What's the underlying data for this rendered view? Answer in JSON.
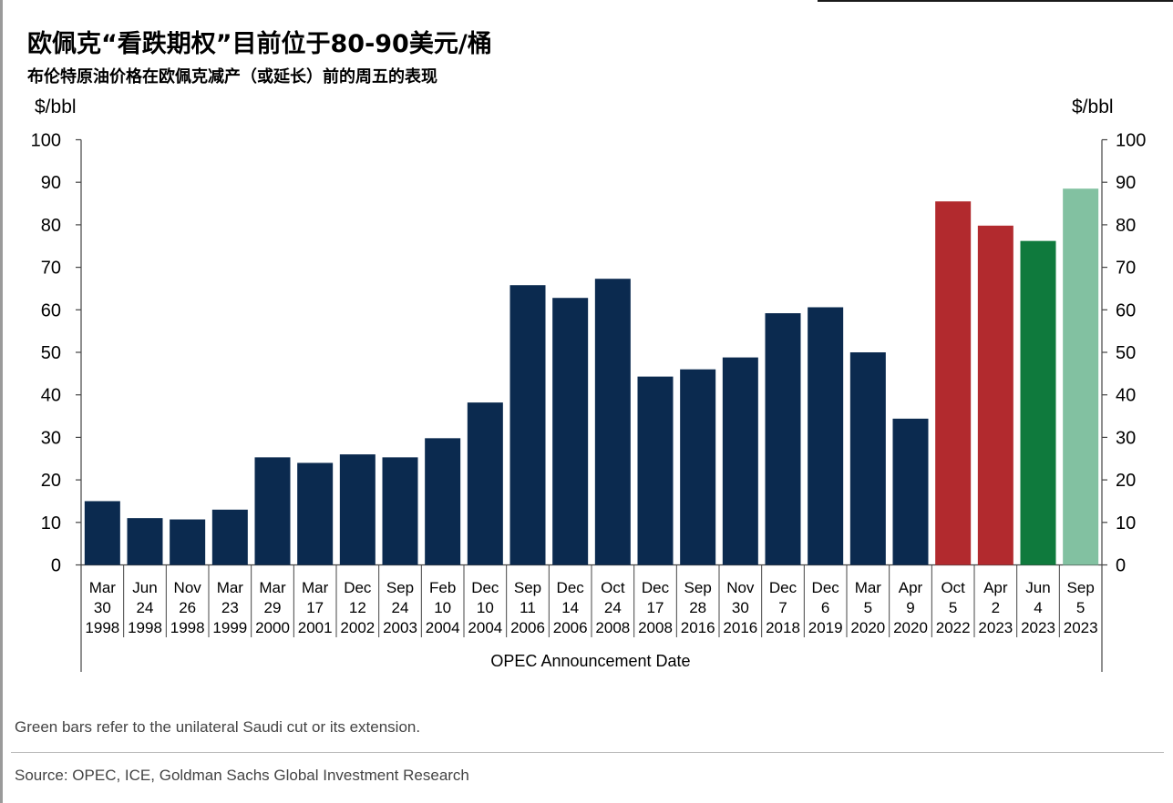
{
  "title": "欧佩克“看跌期权”目前位于80-90美元/桶",
  "subtitle": "布伦特原油价格在欧佩克减产（或延长）前的周五的表现",
  "unit_left": "$/bbl",
  "unit_right": "$/bbl",
  "note": "Green bars refer to the unilateral Saudi cut or its extension.",
  "source": "Source: OPEC, ICE, Goldman Sachs Global Investment Research",
  "colors": {
    "navy": "#0b2a4f",
    "red": "#b22a2e",
    "green": "#0f7a3d",
    "light_green": "#82c1a1"
  },
  "chart_data": {
    "type": "bar",
    "xlabel": "OPEC Announcement Date",
    "ylabel": "$/bbl",
    "ylim": [
      0,
      100
    ],
    "yticks": [
      0,
      10,
      20,
      30,
      40,
      50,
      60,
      70,
      80,
      90,
      100
    ],
    "grid": false,
    "legend": "none",
    "categories": [
      [
        "Mar",
        "30",
        "1998"
      ],
      [
        "Jun",
        "24",
        "1998"
      ],
      [
        "Nov",
        "26",
        "1998"
      ],
      [
        "Mar",
        "23",
        "1999"
      ],
      [
        "Mar",
        "29",
        "2000"
      ],
      [
        "Mar",
        "17",
        "2001"
      ],
      [
        "Dec",
        "12",
        "2002"
      ],
      [
        "Sep",
        "24",
        "2003"
      ],
      [
        "Feb",
        "10",
        "2004"
      ],
      [
        "Dec",
        "10",
        "2004"
      ],
      [
        "Sep",
        "11",
        "2006"
      ],
      [
        "Dec",
        "14",
        "2006"
      ],
      [
        "Oct",
        "24",
        "2008"
      ],
      [
        "Dec",
        "17",
        "2008"
      ],
      [
        "Sep",
        "28",
        "2016"
      ],
      [
        "Nov",
        "30",
        "2016"
      ],
      [
        "Dec",
        "7",
        "2018"
      ],
      [
        "Dec",
        "6",
        "2019"
      ],
      [
        "Mar",
        "5",
        "2020"
      ],
      [
        "Apr",
        "9",
        "2020"
      ],
      [
        "Oct",
        "5",
        "2022"
      ],
      [
        "Apr",
        "2",
        "2023"
      ],
      [
        "Jun",
        "4",
        "2023"
      ],
      [
        "Sep",
        "5",
        "2023"
      ]
    ],
    "values": [
      15,
      11,
      10.7,
      13,
      25.3,
      24,
      26,
      25.3,
      29.8,
      38.2,
      65.8,
      62.8,
      67.3,
      44.3,
      46,
      48.8,
      59.2,
      60.6,
      50,
      34.4,
      85.5,
      79.8,
      76.2,
      88.5
    ],
    "bar_colors": [
      "navy",
      "navy",
      "navy",
      "navy",
      "navy",
      "navy",
      "navy",
      "navy",
      "navy",
      "navy",
      "navy",
      "navy",
      "navy",
      "navy",
      "navy",
      "navy",
      "navy",
      "navy",
      "navy",
      "navy",
      "red",
      "red",
      "green",
      "light_green"
    ]
  }
}
